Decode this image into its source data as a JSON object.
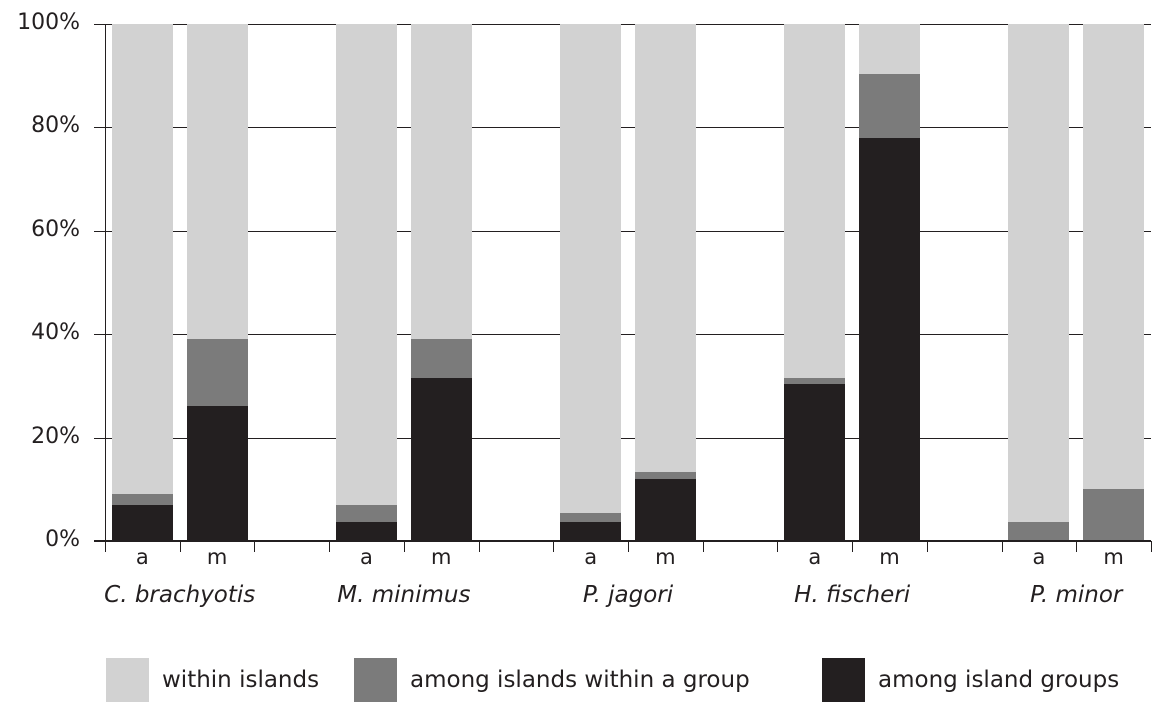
{
  "chart_data": {
    "type": "bar",
    "stacked": true,
    "title": "",
    "xlabel": "",
    "ylabel": "",
    "ylim": [
      0,
      100
    ],
    "yticks": [
      "0%",
      "20%",
      "40%",
      "60%",
      "80%",
      "100%"
    ],
    "grid": true,
    "legend_position": "bottom",
    "groups": [
      "C. brachyotis",
      "M. minimus",
      "P. jagori",
      "H. fischeri",
      "P. minor"
    ],
    "subcategories": [
      "a",
      "m"
    ],
    "categories": [
      "C. brachyotis a",
      "C. brachyotis m",
      "M. minimus a",
      "M. minimus m",
      "P. jagori a",
      "P. jagori m",
      "H. fischeri a",
      "H. fischeri m",
      "P. minor a",
      "P. minor m"
    ],
    "series": [
      {
        "name": "among island groups",
        "color": "#231f20",
        "values": [
          7.0,
          26.2,
          3.7,
          31.6,
          3.7,
          11.9,
          30.4,
          77.9,
          0.0,
          0.0
        ]
      },
      {
        "name": "among islands within a group",
        "color": "#7b7b7b",
        "values": [
          2.1,
          12.9,
          3.3,
          7.5,
          1.8,
          1.4,
          1.2,
          12.4,
          3.7,
          10.1
        ]
      },
      {
        "name": "within islands",
        "color": "#d2d2d2",
        "values": [
          90.9,
          60.9,
          93.0,
          60.9,
          94.5,
          86.7,
          68.4,
          9.7,
          96.3,
          89.9
        ]
      }
    ]
  },
  "legend": {
    "items": [
      {
        "label": "within islands",
        "color": "#d2d2d2"
      },
      {
        "label": "among islands within a group",
        "color": "#7b7b7b"
      },
      {
        "label": "among island groups",
        "color": "#231f20"
      }
    ]
  }
}
